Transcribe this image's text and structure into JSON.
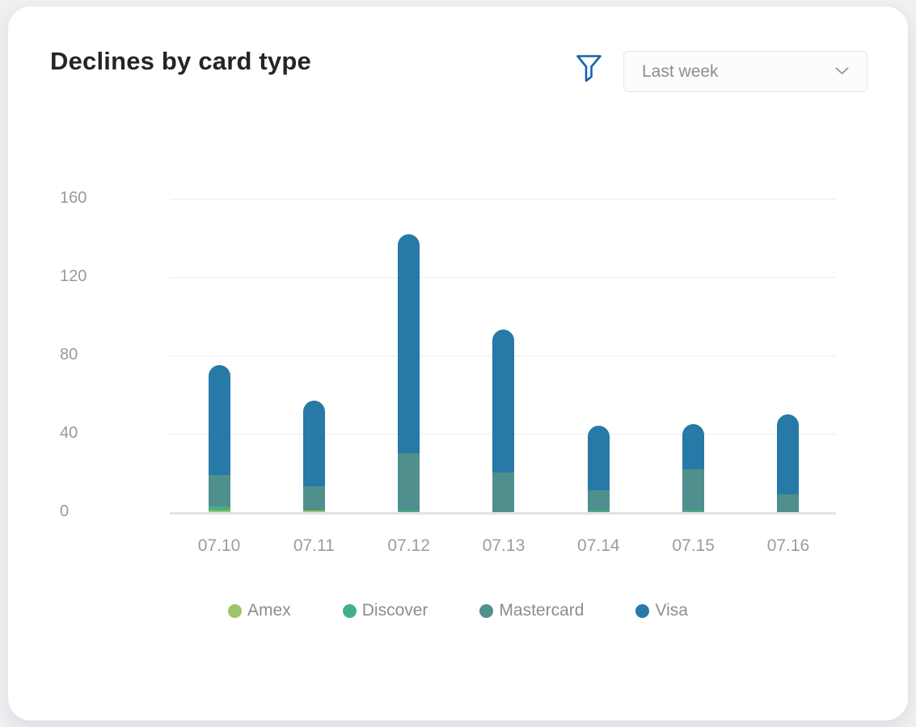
{
  "page": {
    "background": "#f0f0f3",
    "card_background": "#ffffff"
  },
  "header": {
    "title": "Declines by card type",
    "filter_icon_color": "#1563ab",
    "period_dropdown": {
      "value": "Last week"
    }
  },
  "chart_data": {
    "type": "bar",
    "stacked": true,
    "title": "Declines by card type",
    "categories": [
      "07.10",
      "07.11",
      "07.12",
      "07.13",
      "07.14",
      "07.15",
      "07.16"
    ],
    "series": [
      {
        "name": "Amex",
        "color": "#9ec468",
        "values": [
          1,
          1,
          0,
          0,
          0,
          0,
          0
        ]
      },
      {
        "name": "Discover",
        "color": "#42b185",
        "values": [
          2,
          0,
          1,
          0,
          1,
          1,
          0
        ]
      },
      {
        "name": "Mastercard",
        "color": "#4f908e",
        "values": [
          16,
          12,
          29,
          20,
          10,
          21,
          9
        ]
      },
      {
        "name": "Visa",
        "color": "#2779a7",
        "values": [
          56,
          44,
          112,
          73,
          33,
          23,
          41
        ]
      }
    ],
    "totals": [
      75,
      57,
      142,
      93,
      44,
      45,
      50
    ],
    "xlabel": "",
    "ylabel": "",
    "ylim": [
      0,
      160
    ],
    "yticks": [
      160,
      120,
      80,
      40,
      0
    ],
    "grid": "horizontal",
    "legend_position": "bottom",
    "bar_cap": "rounded-top"
  }
}
